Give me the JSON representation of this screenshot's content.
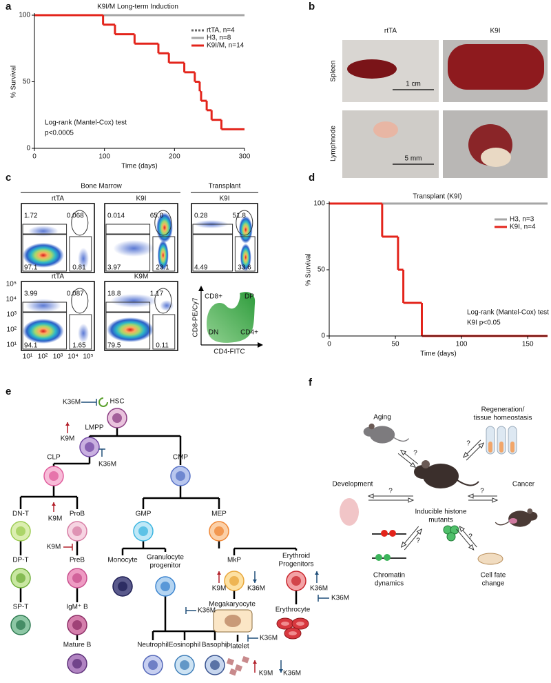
{
  "panel_labels": [
    "a",
    "b",
    "c",
    "d",
    "e",
    "f"
  ],
  "chart_data": [
    {
      "type": "line",
      "step": "post",
      "title": "K9I/M Long-term Induction",
      "x_label": "Time (days)",
      "y_label": "% Survival",
      "xlim": [
        0,
        300
      ],
      "xticks": [
        0,
        100,
        200,
        300
      ],
      "ylim": [
        0,
        100
      ],
      "yticks": [
        0,
        50,
        100
      ],
      "legend": "upper right",
      "annotations": [
        "Log-rank (Mantel-Cox) test",
        "p<0.0005"
      ],
      "series": [
        {
          "name": "rtTA, n=4",
          "color": "#666666",
          "linestyle": "dashed",
          "x": [
            0
          ],
          "values": [
            100
          ]
        },
        {
          "name": "H3, n=8",
          "color": "#a6a6a6",
          "linestyle": "solid",
          "x": [
            0
          ],
          "values": [
            100
          ]
        },
        {
          "name": "K9I/M, n=14",
          "color": "#e3241b",
          "linestyle": "solid",
          "x": [
            0,
            98,
            115,
            143,
            177,
            192,
            214,
            229,
            236,
            238,
            246,
            253,
            267
          ],
          "values": [
            100,
            92.9,
            85.7,
            78.6,
            71.4,
            64.3,
            57.1,
            50,
            42.9,
            35.7,
            28.6,
            21.4,
            14.3
          ]
        }
      ]
    },
    {
      "type": "line",
      "step": "post",
      "title": "Transplant (K9I)",
      "x_label": "Time (days)",
      "y_label": "% Survival",
      "xlim": [
        0,
        165
      ],
      "xticks": [
        0,
        50,
        100,
        150
      ],
      "ylim": [
        0,
        100
      ],
      "yticks": [
        0,
        50,
        100
      ],
      "legend": "upper right",
      "annotations": [
        "Log-rank (Mantel-Cox) test",
        "K9I p<0.05"
      ],
      "series": [
        {
          "name": "H3, n=3",
          "color": "#a6a6a6",
          "linestyle": "solid",
          "x": [
            0
          ],
          "values": [
            100
          ]
        },
        {
          "name": "K9I, n=4",
          "color": "#e3241b",
          "linestyle": "solid",
          "x": [
            0,
            40,
            52,
            56,
            70
          ],
          "values": [
            100,
            75,
            50,
            25,
            0
          ]
        }
      ]
    }
  ],
  "panel_b": {
    "columns": [
      "rtTA",
      "K9I"
    ],
    "rows": [
      "Spleen",
      "Lymphnode"
    ],
    "scale_bars": [
      "1 cm",
      "5 mm"
    ]
  },
  "panel_c": {
    "groups": [
      "Bone Marrow",
      "Transplant"
    ],
    "flow_plots": [
      {
        "title": "rtTA",
        "quadrants": [
          "1.72",
          "0.068",
          "97.1",
          "0.81"
        ]
      },
      {
        "title": "K9I",
        "quadrants": [
          "0.014",
          "65.0",
          "3.97",
          "23.1"
        ]
      },
      {
        "title": "K9I",
        "quadrants": [
          "0.28",
          "51.8",
          "4.49",
          "33.6"
        ]
      },
      {
        "title": "rtTA",
        "quadrants": [
          "3.99",
          "0.087",
          "94.1",
          "1.65"
        ]
      },
      {
        "title": "K9M",
        "quadrants": [
          "18.8",
          "1.17",
          "79.5",
          "0.11"
        ]
      }
    ],
    "axis_ticks": [
      "10¹",
      "10²",
      "10³",
      "10⁴",
      "10⁵"
    ],
    "schematic": {
      "y_axis": "CD8-PE/Cy7",
      "x_axis": "CD4-FITC",
      "regions": [
        "CD8+",
        "DP",
        "DN",
        "CD4+"
      ]
    }
  },
  "panel_e": {
    "nodes": [
      "HSC",
      "LMPP",
      "CLP",
      "CMP",
      "DN-T",
      "ProB",
      "GMP",
      "MEP",
      "DP-T",
      "PreB",
      "Monocyte",
      [
        "Granulocyte",
        "progenitor"
      ],
      "MkP",
      [
        "Erythroid",
        "Progenitors"
      ],
      "SP-T",
      "IgM⁺ B",
      "Megakaryocyte",
      "Erythrocyte",
      "Mature B",
      "Neutrophil",
      "Eosinophil",
      "Basophil",
      "Platelet"
    ],
    "annotations": [
      "K36M",
      "K9M",
      "K36M",
      "K9M",
      "K9M",
      "K9M",
      "K36M",
      "K36M",
      "K36M",
      "K36M",
      "K36M",
      "K9M",
      "K36M"
    ]
  },
  "panel_f": {
    "center": [
      "Inducible histone",
      "mutants"
    ],
    "aging": "Aging",
    "regeneration": [
      "Regeneration/",
      "tissue homeostasis"
    ],
    "development": "Development",
    "cancer": "Cancer",
    "chromatin": [
      "Chromatin",
      "dynamics"
    ],
    "cell_fate": [
      "Cell fate",
      "change"
    ],
    "question": "?"
  }
}
